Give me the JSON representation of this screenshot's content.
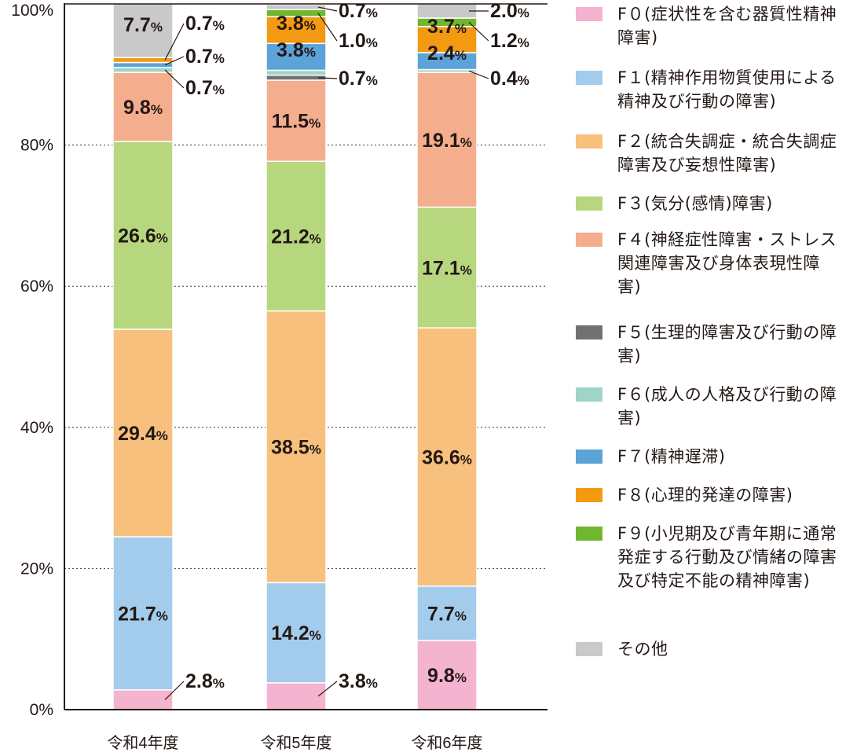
{
  "chart_data": {
    "type": "bar",
    "stacked": true,
    "categories": [
      "令和4年度",
      "令和5年度",
      "令和6年度"
    ],
    "y_ticks": [
      "0%",
      "20%",
      "40%",
      "60%",
      "80%",
      "100%"
    ],
    "ylim": [
      0,
      100
    ],
    "grid": "dotted horizontal",
    "legend_position": "right",
    "series": [
      {
        "name": "F０(症状性を含む器質性精神障害)",
        "color": "#f4b3cf",
        "values": [
          2.8,
          3.8,
          9.8
        ]
      },
      {
        "name": "F１(精神作用物質使用による精神及び行動の障害)",
        "color": "#a3ccec",
        "values": [
          21.7,
          14.2,
          7.7
        ]
      },
      {
        "name": "F２(統合失調症・統合失調症障害及び妄想性障害)",
        "color": "#f7c07c",
        "values": [
          29.4,
          38.5,
          36.6
        ]
      },
      {
        "name": "F３(気分(感情)障害)",
        "color": "#b7d77e",
        "values": [
          26.6,
          21.2,
          17.1
        ]
      },
      {
        "name": "F４(神経症性障害・ストレス関連障害及び身体表現性障害)",
        "color": "#f4ae8e",
        "values": [
          9.8,
          11.5,
          19.1
        ]
      },
      {
        "name": "F５(生理的障害及び行動の障害)",
        "color": "#727171",
        "values": [
          0,
          0.7,
          0
        ]
      },
      {
        "name": "F６(成人の人格及び行動の障害)",
        "color": "#9fd5c9",
        "values": [
          0.7,
          0.7,
          0.4
        ]
      },
      {
        "name": "F７(精神遅滞)",
        "color": "#5ba3d9",
        "values": [
          0.7,
          3.8,
          2.4
        ]
      },
      {
        "name": "F８(心理的発達の障害)",
        "color": "#f39a12",
        "values": [
          0.7,
          3.8,
          3.7
        ]
      },
      {
        "name": "F９(小児期及び青年期に通常発症する行動及び情緒の障害及び特定不能の精神障害)",
        "color": "#70b72f",
        "values": [
          0,
          1.0,
          1.2
        ]
      },
      {
        "name": "その他",
        "color": "#c9c9ca",
        "values": [
          7.7,
          0.7,
          2.0
        ]
      }
    ],
    "data_labels": [
      [
        {
          "series": 0,
          "text": "2.8",
          "unit": "%",
          "callout": true
        },
        {
          "series": 1,
          "text": "21.7",
          "unit": "%"
        },
        {
          "series": 2,
          "text": "29.4",
          "unit": "%"
        },
        {
          "series": 3,
          "text": "26.6",
          "unit": "%"
        },
        {
          "series": 4,
          "text": "9.8",
          "unit": "%"
        },
        {
          "series": 6,
          "text": "0.7",
          "unit": "%",
          "callout": true
        },
        {
          "series": 7,
          "text": "0.7",
          "unit": "%",
          "callout": true
        },
        {
          "series": 8,
          "text": "0.7",
          "unit": "%",
          "callout": true
        },
        {
          "series": 10,
          "text": "7.7",
          "unit": "%"
        }
      ],
      [
        {
          "series": 0,
          "text": "3.8",
          "unit": "%",
          "callout": true
        },
        {
          "series": 1,
          "text": "14.2",
          "unit": "%"
        },
        {
          "series": 2,
          "text": "38.5",
          "unit": "%"
        },
        {
          "series": 3,
          "text": "21.2",
          "unit": "%"
        },
        {
          "series": 4,
          "text": "11.5",
          "unit": "%"
        },
        {
          "series": 5,
          "text": "0.7",
          "unit": "%",
          "callout": true
        },
        {
          "series": 7,
          "text": "3.8",
          "unit": "%"
        },
        {
          "series": 8,
          "text": "3.8",
          "unit": "%"
        },
        {
          "series": 9,
          "text": "1.0",
          "unit": "%",
          "callout": true
        },
        {
          "series": 10,
          "text": "0.7",
          "unit": "%",
          "callout": true
        }
      ],
      [
        {
          "series": 0,
          "text": "9.8",
          "unit": "%"
        },
        {
          "series": 1,
          "text": "7.7",
          "unit": "%"
        },
        {
          "series": 2,
          "text": "36.6",
          "unit": "%"
        },
        {
          "series": 3,
          "text": "17.1",
          "unit": "%"
        },
        {
          "series": 4,
          "text": "19.1",
          "unit": "%"
        },
        {
          "series": 6,
          "text": "0.4",
          "unit": "%",
          "callout": true
        },
        {
          "series": 7,
          "text": "2.4",
          "unit": "%"
        },
        {
          "series": 8,
          "text": "3.7",
          "unit": "%"
        },
        {
          "series": 9,
          "text": "1.2",
          "unit": "%",
          "callout": true
        },
        {
          "series": 10,
          "text": "2.0",
          "unit": "%",
          "callout": true
        }
      ]
    ]
  },
  "legend": {
    "items": [
      {
        "label": "F０(症状性を含む器質性精神障害)",
        "color": "#f4b3cf"
      },
      {
        "label": "F１(精神作用物質使用による精神及び行動の障害)",
        "color": "#a3ccec"
      },
      {
        "label": "F２(統合失調症・統合失調症障害及び妄想性障害)",
        "color": "#f7c07c"
      },
      {
        "label": "F３(気分(感情)障害)",
        "color": "#b7d77e"
      },
      {
        "label": "F４(神経症性障害・ストレス関連障害及び身体表現性障害)",
        "color": "#f4ae8e"
      },
      {
        "label": "F５(生理的障害及び行動の障害)",
        "color": "#727171"
      },
      {
        "label": "F６(成人の人格及び行動の障害)",
        "color": "#9fd5c9"
      },
      {
        "label": "F７(精神遅滞)",
        "color": "#5ba3d9"
      },
      {
        "label": "F８(心理的発達の障害)",
        "color": "#f39a12"
      },
      {
        "label": "F９(小児期及び青年期に通常発症する行動及び情緒の障害及び特定不能の精神障害)",
        "color": "#70b72f"
      },
      {
        "label": "その他",
        "color": "#c9c9ca"
      }
    ]
  }
}
